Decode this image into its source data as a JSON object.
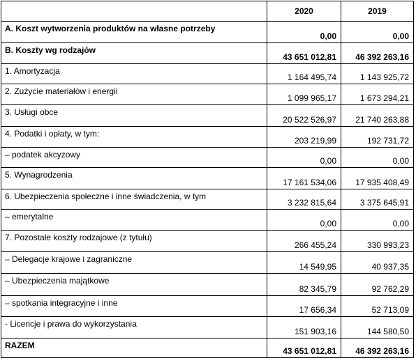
{
  "table": {
    "headers": [
      "",
      "2020",
      "2019"
    ],
    "rows": [
      {
        "label": "A. Koszt wytworzenia produktów na własne potrzeby",
        "v2020": "0,00",
        "v2019": "0,00"
      },
      {
        "label": "B. Koszty wg rodzajów",
        "v2020": "43 651 012,81",
        "v2019": "46 392 263,16"
      },
      {
        "label": "1. Amortyzacja",
        "v2020": "1 164 495,74",
        "v2019": "1 143 925,72"
      },
      {
        "label": "2. Zużycie materiałów i energii",
        "v2020": "1 099 965,17",
        "v2019": "1 673 294,21"
      },
      {
        "label": "3. Usługi obce",
        "v2020": "20 522 526,97",
        "v2019": "21 740 263,88"
      },
      {
        "label": "4. Podatki i opłaty, w tym:",
        "v2020": "203 219,99",
        "v2019": "192 731,72"
      },
      {
        "label": "– podatek akcyzowy",
        "v2020": "0,00",
        "v2019": "0,00"
      },
      {
        "label": "5. Wynagrodzenia",
        "v2020": "17 161 534,06",
        "v2019": "17 935 408,49"
      },
      {
        "label": "6. Ubezpieczenia społeczne i inne świadczenia, w tym",
        "v2020": "3 232 815,64",
        "v2019": "3 375 645,91"
      },
      {
        "label": "– emerytalne",
        "v2020": "0,00",
        "v2019": "0,00"
      },
      {
        "label": "7. Pozostałe koszty rodzajowe (z tytułu)",
        "v2020": "266 455,24",
        "v2019": "330 993,23"
      },
      {
        "label": "– Delegacje krajowe i zagraniczne",
        "v2020": "14 549,95",
        "v2019": "40 937,35"
      },
      {
        "label": "– Ubezpieczenia majątkowe",
        "v2020": "82 345,79",
        "v2019": "92 762,29"
      },
      {
        "label": "– spotkania integracyjne i inne",
        "v2020": "17 656,34",
        "v2019": "52 713,09"
      },
      {
        "label": "- Licencje i prawa do wykorzystania",
        "v2020": "151 903,16",
        "v2019": "144 580,50"
      },
      {
        "label": "RAZEM",
        "v2020": "43 651 012,81",
        "v2019": "46 392 263,16"
      }
    ]
  }
}
